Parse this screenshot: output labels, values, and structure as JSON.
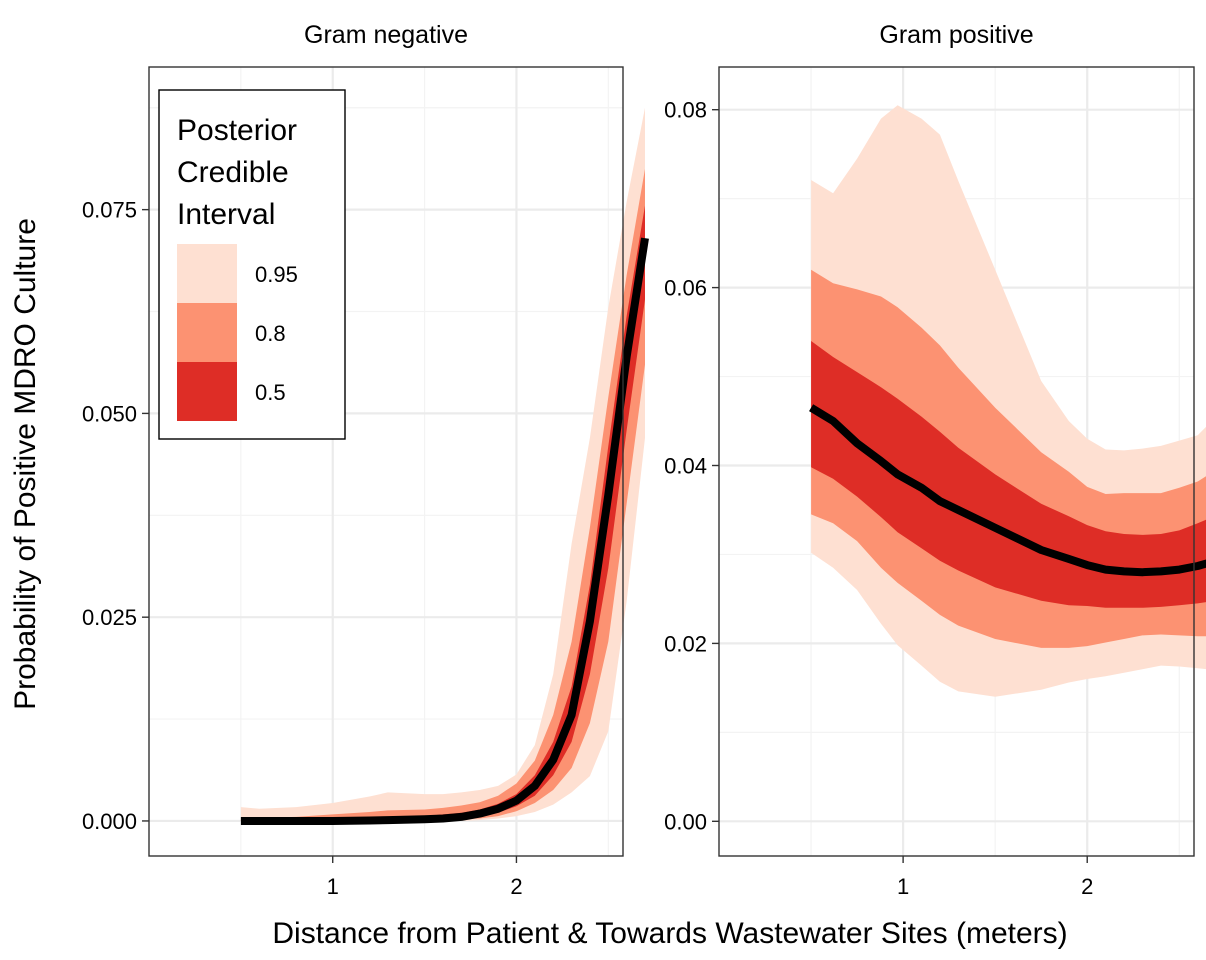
{
  "chart_data": {
    "type": "area",
    "ylabel": "Probability of Positive MDRO Culture",
    "xlabel": "Distance from Patient & Towards Wastewater Sites (meters)",
    "legend": {
      "title_lines": [
        "Posterior",
        "Credible",
        "Interval"
      ],
      "placement": "top-left of first panel",
      "entries": [
        {
          "label": "0.95",
          "color": "#fee0d2"
        },
        {
          "label": "0.8",
          "color": "#fc9272"
        },
        {
          "label": "0.5",
          "color": "#de2d26"
        }
      ]
    },
    "median_color": "#000000",
    "panels": [
      {
        "title": "Gram negative",
        "xlim": [
          0.0,
          2.58
        ],
        "ylim": [
          -0.0043,
          0.0925
        ],
        "x_ticks": [
          1,
          2
        ],
        "x_tick_labels": [
          "1",
          "2"
        ],
        "y_ticks": [
          0,
          0.025,
          0.05,
          0.075
        ],
        "y_tick_labels": [
          "0.000",
          "0.025",
          "0.050",
          "0.075"
        ],
        "x": [
          0.5,
          0.6,
          0.8,
          1.0,
          1.2,
          1.3,
          1.5,
          1.6,
          1.7,
          1.8,
          1.9,
          2.0,
          2.1,
          2.2,
          2.3,
          2.4,
          2.5,
          2.6,
          2.7
        ],
        "median": [
          0,
          0,
          0,
          0,
          5e-05,
          0.0001,
          0.0002,
          0.0003,
          0.0005,
          0.0009,
          0.0015,
          0.0025,
          0.0043,
          0.0075,
          0.013,
          0.0245,
          0.04,
          0.057,
          0.0715
        ],
        "lo95": [
          0,
          0,
          0,
          0,
          0,
          0,
          0,
          0,
          0,
          0.0001,
          0.0003,
          0.0006,
          0.0011,
          0.002,
          0.0035,
          0.0055,
          0.011,
          0.027,
          0.047
        ],
        "hi95": [
          0.0017,
          0.0015,
          0.0017,
          0.0022,
          0.003,
          0.0035,
          0.0033,
          0.0033,
          0.0035,
          0.0038,
          0.0043,
          0.0057,
          0.0093,
          0.018,
          0.034,
          0.047,
          0.063,
          0.076,
          0.0875
        ],
        "lo80": [
          0,
          0,
          0,
          0,
          0,
          0,
          5e-05,
          0.0001,
          0.0002,
          0.0003,
          0.0006,
          0.0012,
          0.0022,
          0.0038,
          0.0065,
          0.012,
          0.022,
          0.039,
          0.056
        ],
        "hi80": [
          0.0004,
          0.0004,
          0.0005,
          0.0008,
          0.0011,
          0.0013,
          0.0014,
          0.0016,
          0.0019,
          0.0023,
          0.0031,
          0.0046,
          0.0074,
          0.013,
          0.022,
          0.036,
          0.052,
          0.067,
          0.08
        ],
        "lo50": [
          0,
          0,
          0,
          0,
          0,
          2e-05,
          0.0001,
          0.0002,
          0.0003,
          0.0006,
          0.001,
          0.0018,
          0.0031,
          0.0056,
          0.0097,
          0.018,
          0.031,
          0.048,
          0.064
        ],
        "hi50": [
          0.0001,
          0.0001,
          0.0002,
          0.0003,
          0.0004,
          0.0005,
          0.0006,
          0.0008,
          0.001,
          0.0014,
          0.0021,
          0.0033,
          0.0056,
          0.0097,
          0.0165,
          0.029,
          0.046,
          0.062,
          0.0755
        ]
      },
      {
        "title": "Gram positive",
        "xlim": [
          0.0,
          2.58
        ],
        "ylim": [
          -0.0039,
          0.0848
        ],
        "x_ticks": [
          1,
          2
        ],
        "x_tick_labels": [
          "1",
          "2"
        ],
        "y_ticks": [
          0,
          0.02,
          0.04,
          0.06,
          0.08
        ],
        "y_tick_labels": [
          "0.00",
          "0.02",
          "0.04",
          "0.06",
          "0.08"
        ],
        "x": [
          0.5,
          0.62,
          0.75,
          0.88,
          0.97,
          1.1,
          1.2,
          1.3,
          1.5,
          1.75,
          1.9,
          2.0,
          2.1,
          2.2,
          2.3,
          2.4,
          2.5,
          2.6,
          2.7
        ],
        "median": [
          0.0465,
          0.045,
          0.0425,
          0.0405,
          0.039,
          0.0375,
          0.036,
          0.035,
          0.033,
          0.0305,
          0.0295,
          0.0288,
          0.0283,
          0.0281,
          0.028,
          0.0281,
          0.0283,
          0.0287,
          0.0293
        ],
        "lo95": [
          0.0302,
          0.0285,
          0.026,
          0.0222,
          0.0198,
          0.0175,
          0.0157,
          0.0146,
          0.014,
          0.0148,
          0.0156,
          0.016,
          0.0163,
          0.0167,
          0.0171,
          0.0175,
          0.0174,
          0.0172,
          0.017
        ],
        "hi95": [
          0.0721,
          0.0706,
          0.0745,
          0.079,
          0.0805,
          0.079,
          0.0772,
          0.072,
          0.062,
          0.0495,
          0.045,
          0.043,
          0.0418,
          0.0417,
          0.0419,
          0.0422,
          0.0428,
          0.0434,
          0.0455
        ],
        "lo80": [
          0.0345,
          0.0335,
          0.0315,
          0.0285,
          0.0268,
          0.0248,
          0.0232,
          0.022,
          0.0205,
          0.0195,
          0.0195,
          0.0197,
          0.0201,
          0.0205,
          0.0209,
          0.021,
          0.0209,
          0.0208,
          0.0208
        ],
        "hi80": [
          0.062,
          0.0605,
          0.0598,
          0.059,
          0.0578,
          0.0555,
          0.0535,
          0.051,
          0.0465,
          0.0415,
          0.0393,
          0.0376,
          0.0368,
          0.0369,
          0.0369,
          0.0369,
          0.0375,
          0.0382,
          0.0395
        ],
        "lo50": [
          0.0398,
          0.0385,
          0.0365,
          0.0342,
          0.0325,
          0.0307,
          0.0293,
          0.0282,
          0.0263,
          0.0248,
          0.0243,
          0.0242,
          0.024,
          0.024,
          0.024,
          0.0241,
          0.0243,
          0.0245,
          0.0248
        ],
        "hi50": [
          0.054,
          0.0522,
          0.0505,
          0.0488,
          0.0475,
          0.0455,
          0.0438,
          0.042,
          0.039,
          0.0357,
          0.0343,
          0.0333,
          0.0326,
          0.0323,
          0.0322,
          0.0323,
          0.0327,
          0.0335,
          0.0344
        ]
      }
    ]
  }
}
